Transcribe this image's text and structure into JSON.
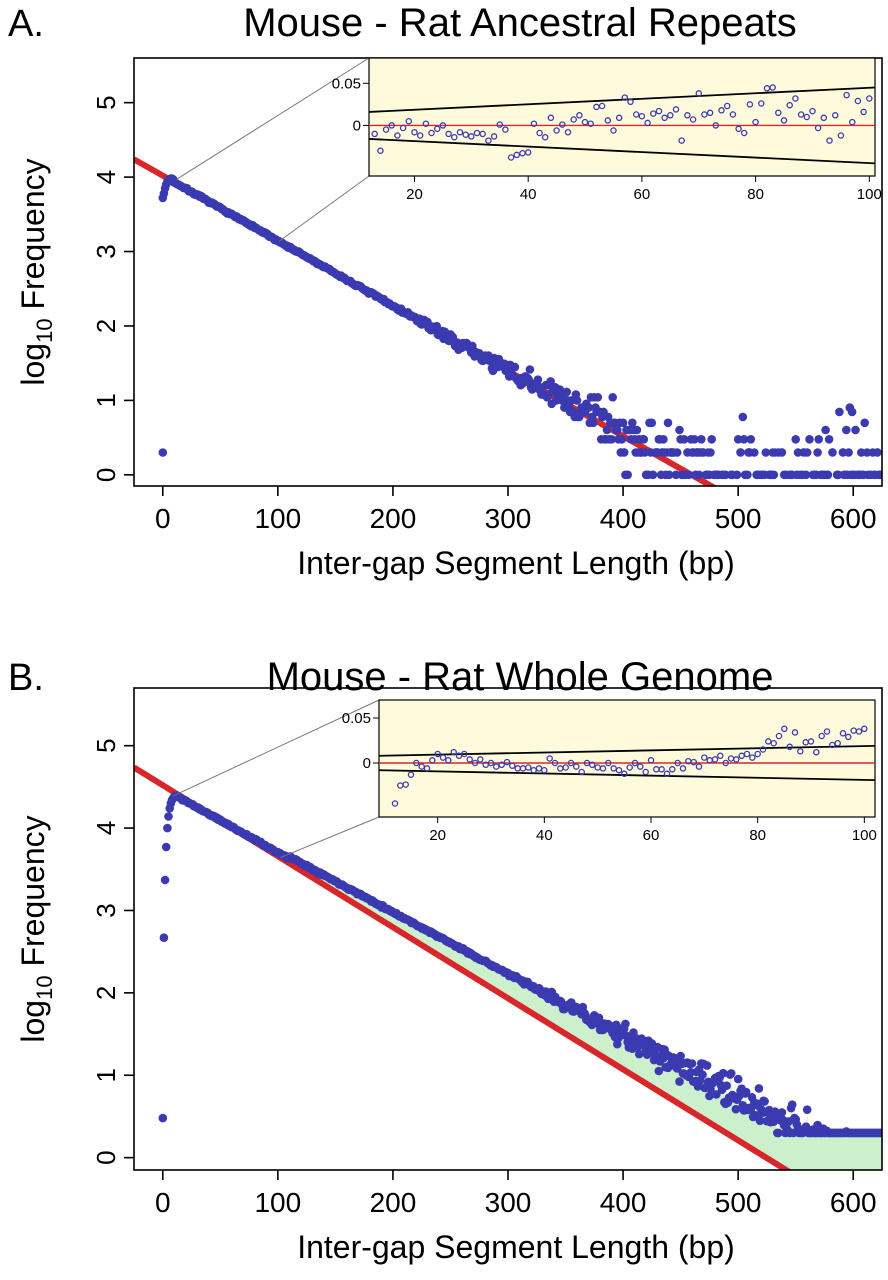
{
  "chart_data": [
    {
      "panel": "A.",
      "title": "Mouse - Rat Ancestral Repeats",
      "type": "scatter",
      "xlabel": "Inter-gap Segment Length (bp)",
      "ylabel_main": "log",
      "ylabel_sub": "10",
      "ylabel_rest": " Frequency",
      "xlim": [
        -25,
        625
      ],
      "ylim": [
        -0.15,
        5.6
      ],
      "xticks": [
        0,
        100,
        200,
        300,
        400,
        500,
        600
      ],
      "yticks": [
        0,
        1,
        2,
        3,
        4,
        5
      ],
      "rise": [
        [
          0,
          3.72
        ],
        [
          1,
          3.78
        ],
        [
          2,
          3.85
        ],
        [
          3,
          3.9
        ],
        [
          4,
          3.94
        ],
        [
          5,
          3.96
        ],
        [
          6,
          3.97
        ],
        [
          7,
          3.98
        ],
        [
          8,
          3.98
        ],
        [
          9,
          3.97
        ]
      ],
      "outliers": [
        [
          0,
          0.3
        ]
      ],
      "fit_line": {
        "color": "#d9262b",
        "intercept": 4.02,
        "slope": -0.00875
      },
      "series_color": "#3b3ab0",
      "shaded_excess": false,
      "inset": {
        "xlim": [
          12,
          101
        ],
        "ylim": [
          -0.06,
          0.08
        ],
        "xticks": [
          20,
          40,
          60,
          80,
          100
        ],
        "yticks": [
          0,
          0.05
        ],
        "ytick_labels": [
          "0",
          "0.05"
        ],
        "bound_upper": [
          [
            12,
            0.016
          ],
          [
            101,
            0.045
          ]
        ],
        "bound_lower": [
          [
            12,
            -0.016
          ],
          [
            101,
            -0.045
          ]
        ],
        "points": [
          [
            13,
            -0.01
          ],
          [
            14,
            -0.03
          ],
          [
            15,
            -0.005
          ],
          [
            16,
            0.0
          ],
          [
            17,
            -0.012
          ],
          [
            18,
            -0.003
          ],
          [
            19,
            0.005
          ],
          [
            20,
            -0.008
          ],
          [
            21,
            -0.012
          ],
          [
            22,
            0.002
          ],
          [
            23,
            -0.009
          ],
          [
            24,
            -0.004
          ],
          [
            25,
            0.0
          ],
          [
            26,
            -0.01
          ],
          [
            27,
            -0.014
          ],
          [
            28,
            -0.008
          ],
          [
            29,
            -0.011
          ],
          [
            30,
            -0.013
          ],
          [
            31,
            -0.009
          ],
          [
            32,
            -0.01
          ],
          [
            33,
            -0.018
          ],
          [
            34,
            -0.013
          ],
          [
            35,
            0.001
          ],
          [
            36,
            -0.005
          ],
          [
            37,
            -0.038
          ],
          [
            38,
            -0.035
          ],
          [
            39,
            -0.033
          ],
          [
            40,
            -0.032
          ],
          [
            41,
            0.002
          ],
          [
            42,
            -0.009
          ],
          [
            43,
            -0.014
          ],
          [
            44,
            0.009
          ],
          [
            45,
            -0.006
          ],
          [
            46,
            0.001
          ],
          [
            47,
            -0.008
          ],
          [
            48,
            0.007
          ],
          [
            49,
            0.012
          ],
          [
            50,
            0.004
          ],
          [
            51,
            0.002
          ],
          [
            52,
            0.022
          ],
          [
            53,
            0.023
          ],
          [
            54,
            0.006
          ],
          [
            55,
            -0.006
          ],
          [
            56,
            0.009
          ],
          [
            57,
            0.033
          ],
          [
            58,
            0.028
          ],
          [
            59,
            0.013
          ],
          [
            60,
            0.011
          ],
          [
            61,
            0.003
          ],
          [
            62,
            0.014
          ],
          [
            63,
            0.017
          ],
          [
            64,
            0.009
          ],
          [
            65,
            0.012
          ],
          [
            66,
            0.019
          ],
          [
            67,
            -0.018
          ],
          [
            68,
            0.012
          ],
          [
            69,
            0.007
          ],
          [
            70,
            0.038
          ],
          [
            71,
            0.013
          ],
          [
            72,
            0.015
          ],
          [
            73,
            0.0
          ],
          [
            74,
            0.018
          ],
          [
            75,
            0.023
          ],
          [
            76,
            0.013
          ],
          [
            77,
            -0.004
          ],
          [
            78,
            -0.009
          ],
          [
            79,
            0.025
          ],
          [
            80,
            0.004
          ],
          [
            81,
            0.026
          ],
          [
            82,
            0.044
          ],
          [
            83,
            0.045
          ],
          [
            84,
            0.015
          ],
          [
            85,
            0.006
          ],
          [
            86,
            0.024
          ],
          [
            87,
            0.032
          ],
          [
            88,
            0.013
          ],
          [
            89,
            0.01
          ],
          [
            90,
            0.017
          ],
          [
            91,
            -0.003
          ],
          [
            92,
            0.009
          ],
          [
            93,
            -0.018
          ],
          [
            94,
            0.012
          ],
          [
            95,
            -0.012
          ],
          [
            96,
            0.036
          ],
          [
            97,
            0.004
          ],
          [
            98,
            0.029
          ],
          [
            99,
            0.016
          ],
          [
            100,
            0.032
          ]
        ]
      }
    },
    {
      "panel": "B.",
      "title": "Mouse - Rat Whole Genome",
      "type": "scatter",
      "xlabel": "Inter-gap Segment Length (bp)",
      "ylabel_main": "log",
      "ylabel_sub": "10",
      "ylabel_rest": " Frequency",
      "xlim": [
        -25,
        625
      ],
      "ylim": [
        -0.15,
        5.7
      ],
      "xticks": [
        0,
        100,
        200,
        300,
        400,
        500,
        600
      ],
      "yticks": [
        0,
        1,
        2,
        3,
        4,
        5
      ],
      "rise": [
        [
          0,
          0.48
        ],
        [
          1,
          2.67
        ],
        [
          2,
          3.37
        ],
        [
          3,
          3.77
        ],
        [
          4,
          4.0
        ],
        [
          5,
          4.14
        ],
        [
          6,
          4.24
        ],
        [
          7,
          4.3
        ],
        [
          8,
          4.34
        ],
        [
          9,
          4.36
        ],
        [
          10,
          4.38
        ],
        [
          11,
          4.39
        ]
      ],
      "outliers": [],
      "fit_line": {
        "color": "#d9262b",
        "intercept": 4.52,
        "slope": -0.00862
      },
      "series_color": "#3b3ab0",
      "shaded_excess": true,
      "shade_color": "#ccf0cc",
      "inset": {
        "xlim": [
          9,
          102
        ],
        "ylim": [
          -0.06,
          0.07
        ],
        "xticks": [
          20,
          40,
          60,
          80,
          100
        ],
        "yticks": [
          0,
          0.05
        ],
        "ytick_labels": [
          "0",
          "0.05"
        ],
        "bound_upper": [
          [
            9,
            0.008
          ],
          [
            102,
            0.019
          ]
        ],
        "bound_lower": [
          [
            9,
            -0.008
          ],
          [
            102,
            -0.019
          ]
        ],
        "points": [
          [
            12,
            -0.045
          ],
          [
            13,
            -0.025
          ],
          [
            14,
            -0.024
          ],
          [
            15,
            -0.013
          ],
          [
            16,
            0.0
          ],
          [
            17,
            -0.004
          ],
          [
            18,
            -0.006
          ],
          [
            19,
            0.003
          ],
          [
            20,
            0.01
          ],
          [
            21,
            0.006
          ],
          [
            22,
            0.003
          ],
          [
            23,
            0.012
          ],
          [
            24,
            0.008
          ],
          [
            25,
            0.01
          ],
          [
            26,
            0.004
          ],
          [
            27,
            0.0
          ],
          [
            28,
            0.004
          ],
          [
            29,
            -0.002
          ],
          [
            30,
            0.0
          ],
          [
            31,
            -0.004
          ],
          [
            32,
            -0.002
          ],
          [
            33,
            0.001
          ],
          [
            34,
            -0.003
          ],
          [
            35,
            -0.006
          ],
          [
            36,
            -0.006
          ],
          [
            37,
            -0.005
          ],
          [
            38,
            -0.008
          ],
          [
            39,
            -0.006
          ],
          [
            40,
            -0.008
          ],
          [
            41,
            0.005
          ],
          [
            42,
            0.0
          ],
          [
            43,
            -0.006
          ],
          [
            44,
            -0.005
          ],
          [
            45,
            0.0
          ],
          [
            46,
            -0.004
          ],
          [
            47,
            -0.01
          ],
          [
            48,
            0.0
          ],
          [
            49,
            -0.002
          ],
          [
            50,
            -0.005
          ],
          [
            51,
            -0.006
          ],
          [
            52,
            0.0
          ],
          [
            53,
            -0.006
          ],
          [
            54,
            -0.008
          ],
          [
            55,
            -0.012
          ],
          [
            56,
            -0.005
          ],
          [
            57,
            0.0
          ],
          [
            58,
            -0.004
          ],
          [
            59,
            -0.01
          ],
          [
            60,
            0.003
          ],
          [
            61,
            -0.007
          ],
          [
            62,
            -0.007
          ],
          [
            63,
            -0.012
          ],
          [
            64,
            -0.007
          ],
          [
            65,
            0.0
          ],
          [
            66,
            -0.006
          ],
          [
            67,
            0.002
          ],
          [
            68,
            0.001
          ],
          [
            69,
            -0.004
          ],
          [
            70,
            0.006
          ],
          [
            71,
            0.003
          ],
          [
            72,
            0.004
          ],
          [
            73,
            0.008
          ],
          [
            74,
            0.0
          ],
          [
            75,
            0.005
          ],
          [
            76,
            0.004
          ],
          [
            77,
            0.008
          ],
          [
            78,
            0.01
          ],
          [
            79,
            0.006
          ],
          [
            80,
            0.01
          ],
          [
            81,
            0.015
          ],
          [
            82,
            0.024
          ],
          [
            83,
            0.022
          ],
          [
            84,
            0.03
          ],
          [
            85,
            0.038
          ],
          [
            86,
            0.018
          ],
          [
            87,
            0.034
          ],
          [
            88,
            0.013
          ],
          [
            89,
            0.023
          ],
          [
            90,
            0.024
          ],
          [
            91,
            0.012
          ],
          [
            92,
            0.03
          ],
          [
            93,
            0.035
          ],
          [
            94,
            0.02
          ],
          [
            95,
            0.022
          ],
          [
            96,
            0.033
          ],
          [
            97,
            0.029
          ],
          [
            98,
            0.036
          ],
          [
            99,
            0.035
          ],
          [
            100,
            0.038
          ]
        ]
      }
    }
  ]
}
